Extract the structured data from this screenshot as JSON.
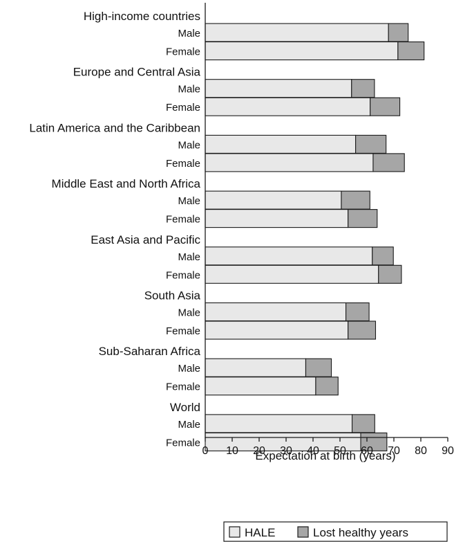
{
  "chart_data": {
    "type": "bar",
    "orientation": "horizontal",
    "stacked": true,
    "title": "",
    "xlabel": "Expectation at birth (years)",
    "ylabel": "",
    "xlim": [
      0,
      90
    ],
    "xticks": [
      0,
      10,
      20,
      30,
      40,
      50,
      60,
      70,
      80,
      90
    ],
    "grid": false,
    "legend_position": "bottom",
    "colors": {
      "HALE": "#e8e8e8",
      "Lost healthy years": "#a6a6a6",
      "edge": "#1a1a1a"
    },
    "groups": [
      {
        "region": "High-income countries",
        "bars": [
          {
            "sex": "Male",
            "hale": 68.0,
            "lost": 7.3
          },
          {
            "sex": "Female",
            "hale": 71.5,
            "lost": 9.7
          }
        ]
      },
      {
        "region": "Europe and Central Asia",
        "bars": [
          {
            "sex": "Male",
            "hale": 54.3,
            "lost": 8.5
          },
          {
            "sex": "Female",
            "hale": 61.2,
            "lost": 11.0
          }
        ]
      },
      {
        "region": "Latin America and the Caribbean",
        "bars": [
          {
            "sex": "Male",
            "hale": 55.8,
            "lost": 11.3
          },
          {
            "sex": "Female",
            "hale": 62.3,
            "lost": 11.6
          }
        ]
      },
      {
        "region": "Middle East and North Africa",
        "bars": [
          {
            "sex": "Male",
            "hale": 50.5,
            "lost": 10.6
          },
          {
            "sex": "Female",
            "hale": 53.0,
            "lost": 10.8
          }
        ]
      },
      {
        "region": "East Asia and Pacific",
        "bars": [
          {
            "sex": "Male",
            "hale": 62.0,
            "lost": 7.8
          },
          {
            "sex": "Female",
            "hale": 64.3,
            "lost": 8.5
          }
        ]
      },
      {
        "region": "South Asia",
        "bars": [
          {
            "sex": "Male",
            "hale": 52.2,
            "lost": 8.6
          },
          {
            "sex": "Female",
            "hale": 53.0,
            "lost": 10.2
          }
        ]
      },
      {
        "region": "Sub-Saharan Africa",
        "bars": [
          {
            "sex": "Male",
            "hale": 37.3,
            "lost": 9.5
          },
          {
            "sex": "Female",
            "hale": 41.0,
            "lost": 8.3
          }
        ]
      },
      {
        "region": "World",
        "bars": [
          {
            "sex": "Male",
            "hale": 54.5,
            "lost": 8.4
          },
          {
            "sex": "Female",
            "hale": 57.7,
            "lost": 9.7
          }
        ]
      }
    ],
    "legend": [
      "HALE",
      "Lost healthy years"
    ]
  }
}
